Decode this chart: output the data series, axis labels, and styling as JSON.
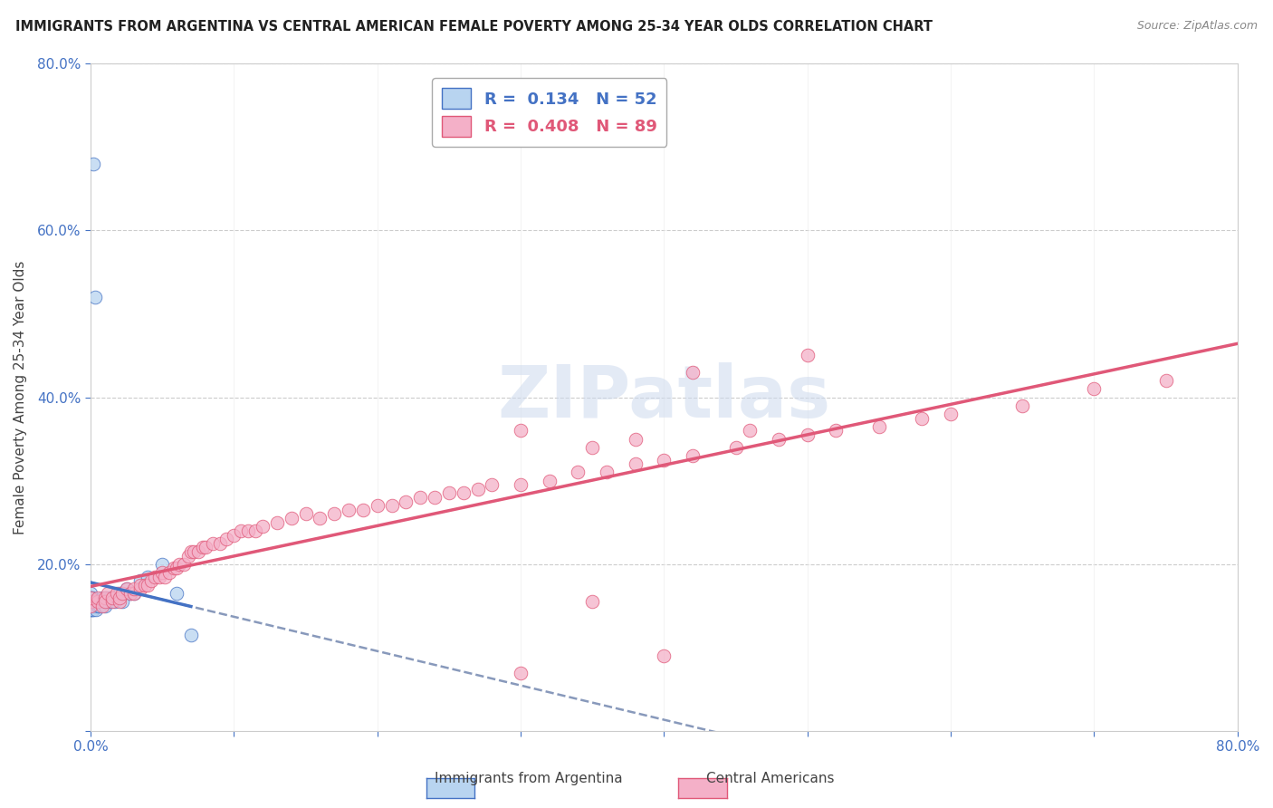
{
  "title": "IMMIGRANTS FROM ARGENTINA VS CENTRAL AMERICAN FEMALE POVERTY AMONG 25-34 YEAR OLDS CORRELATION CHART",
  "source": "Source: ZipAtlas.com",
  "ylabel": "Female Poverty Among 25-34 Year Olds",
  "xlim": [
    0.0,
    0.8
  ],
  "ylim": [
    0.0,
    0.8
  ],
  "watermark": "ZIPatlas",
  "legend_R1": "0.134",
  "legend_N1": "52",
  "legend_R2": "0.408",
  "legend_N2": "89",
  "color_argentina": "#b8d4f0",
  "color_central": "#f4b0c8",
  "line_color_argentina": "#4472c4",
  "line_color_central": "#e05878",
  "line_color_dashed": "#8899bb",
  "argentina_x": [
    0.0,
    0.0,
    0.0,
    0.0,
    0.0,
    0.0,
    0.0,
    0.0,
    0.0,
    0.0,
    0.001,
    0.001,
    0.001,
    0.001,
    0.001,
    0.002,
    0.002,
    0.002,
    0.002,
    0.003,
    0.003,
    0.003,
    0.004,
    0.004,
    0.005,
    0.005,
    0.006,
    0.006,
    0.007,
    0.008,
    0.009,
    0.01,
    0.01,
    0.011,
    0.012,
    0.013,
    0.014,
    0.015,
    0.017,
    0.018,
    0.02,
    0.022,
    0.025,
    0.028,
    0.03,
    0.035,
    0.04,
    0.05,
    0.06,
    0.07,
    0.002,
    0.003
  ],
  "argentina_y": [
    0.155,
    0.16,
    0.165,
    0.155,
    0.15,
    0.145,
    0.16,
    0.145,
    0.15,
    0.155,
    0.155,
    0.16,
    0.145,
    0.15,
    0.155,
    0.15,
    0.145,
    0.155,
    0.15,
    0.155,
    0.15,
    0.155,
    0.145,
    0.155,
    0.15,
    0.155,
    0.15,
    0.155,
    0.155,
    0.16,
    0.155,
    0.155,
    0.15,
    0.16,
    0.155,
    0.16,
    0.155,
    0.16,
    0.155,
    0.16,
    0.165,
    0.155,
    0.17,
    0.165,
    0.165,
    0.18,
    0.185,
    0.2,
    0.165,
    0.115,
    0.68,
    0.52
  ],
  "central_x": [
    0.0,
    0.0,
    0.0,
    0.005,
    0.005,
    0.008,
    0.01,
    0.01,
    0.012,
    0.015,
    0.015,
    0.018,
    0.02,
    0.02,
    0.022,
    0.025,
    0.028,
    0.03,
    0.03,
    0.035,
    0.035,
    0.038,
    0.04,
    0.042,
    0.045,
    0.048,
    0.05,
    0.052,
    0.055,
    0.058,
    0.06,
    0.062,
    0.065,
    0.068,
    0.07,
    0.072,
    0.075,
    0.078,
    0.08,
    0.085,
    0.09,
    0.095,
    0.1,
    0.105,
    0.11,
    0.115,
    0.12,
    0.13,
    0.14,
    0.15,
    0.16,
    0.17,
    0.18,
    0.19,
    0.2,
    0.21,
    0.22,
    0.23,
    0.24,
    0.25,
    0.26,
    0.27,
    0.28,
    0.3,
    0.32,
    0.34,
    0.36,
    0.38,
    0.4,
    0.42,
    0.45,
    0.48,
    0.5,
    0.52,
    0.55,
    0.58,
    0.6,
    0.65,
    0.7,
    0.75,
    0.3,
    0.35,
    0.38,
    0.42,
    0.46,
    0.5,
    0.35,
    0.3,
    0.4
  ],
  "central_y": [
    0.155,
    0.15,
    0.16,
    0.155,
    0.16,
    0.15,
    0.16,
    0.155,
    0.165,
    0.155,
    0.16,
    0.165,
    0.155,
    0.16,
    0.165,
    0.17,
    0.165,
    0.165,
    0.17,
    0.17,
    0.175,
    0.175,
    0.175,
    0.18,
    0.185,
    0.185,
    0.19,
    0.185,
    0.19,
    0.195,
    0.195,
    0.2,
    0.2,
    0.21,
    0.215,
    0.215,
    0.215,
    0.22,
    0.22,
    0.225,
    0.225,
    0.23,
    0.235,
    0.24,
    0.24,
    0.24,
    0.245,
    0.25,
    0.255,
    0.26,
    0.255,
    0.26,
    0.265,
    0.265,
    0.27,
    0.27,
    0.275,
    0.28,
    0.28,
    0.285,
    0.285,
    0.29,
    0.295,
    0.295,
    0.3,
    0.31,
    0.31,
    0.32,
    0.325,
    0.33,
    0.34,
    0.35,
    0.355,
    0.36,
    0.365,
    0.375,
    0.38,
    0.39,
    0.41,
    0.42,
    0.36,
    0.34,
    0.35,
    0.43,
    0.36,
    0.45,
    0.155,
    0.07,
    0.09
  ]
}
